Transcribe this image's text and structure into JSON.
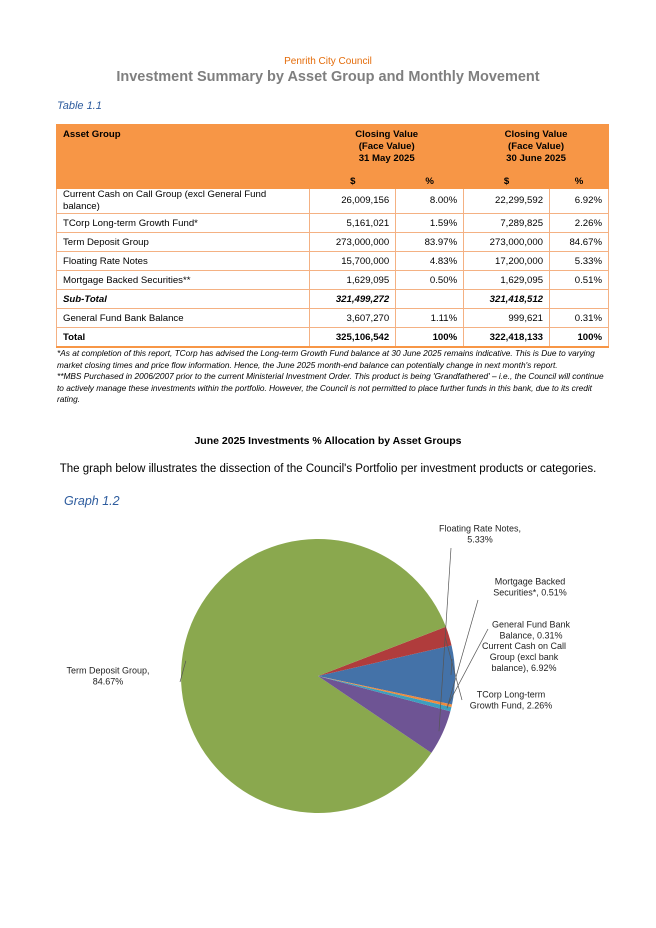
{
  "header": {
    "council": "Penrith City Council",
    "title": "Investment Summary by Asset Group and Monthly Movement"
  },
  "table": {
    "caption": "Table 1.1",
    "col_asset": "Asset Group",
    "col_may": [
      "Closing Value",
      "(Face Value)",
      "31 May 2025"
    ],
    "col_june": [
      "Closing Value",
      "(Face Value)",
      "30 June 2025"
    ],
    "sub_dollar": "$",
    "sub_pct": "%",
    "rows": [
      {
        "name": "Current Cash on Call Group (excl General Fund balance)",
        "may": "26,009,156",
        "may_pct": "8.00%",
        "june": "22,299,592",
        "june_pct": "6.92%"
      },
      {
        "name": "TCorp Long-term Growth Fund*",
        "may": "5,161,021",
        "may_pct": "1.59%",
        "june": "7,289,825",
        "june_pct": "2.26%"
      },
      {
        "name": "Term Deposit Group",
        "may": "273,000,000",
        "may_pct": "83.97%",
        "june": "273,000,000",
        "june_pct": "84.67%"
      },
      {
        "name": "Floating Rate Notes",
        "may": "15,700,000",
        "may_pct": "4.83%",
        "june": "17,200,000",
        "june_pct": "5.33%"
      },
      {
        "name": "Mortgage Backed Securities**",
        "may": "1,629,095",
        "may_pct": "0.50%",
        "june": "1,629,095",
        "june_pct": "0.51%"
      }
    ],
    "subtotal": {
      "name": "Sub-Total",
      "may": "321,499,272",
      "may_pct": "",
      "june": "321,418,512",
      "june_pct": ""
    },
    "gf": {
      "name": "General Fund Bank Balance",
      "may": "3,607,270",
      "may_pct": "1.11%",
      "june": "999,621",
      "june_pct": "0.31%"
    },
    "total": {
      "name": "Total",
      "may": "325,106,542",
      "may_pct": "100%",
      "june": "322,418,133",
      "june_pct": "100%"
    }
  },
  "notes": [
    "*As at completion of this report, TCorp has advised the Long-term Growth Fund balance at 30 June 2025 remains indicative. This is Due to varying market closing times and price flow information. Hence, the June 2025 month-end balance can potentially change in next month's report.",
    "**MBS Purchased in 2006/2007 prior to the current Ministerial Investment Order. This product is being 'Grandfathered' – i.e., the Council will continue to actively manage these investments within the portfolio. However, the Council is not permitted to place further funds in this bank, due to its credit rating."
  ],
  "section": {
    "heading": "June 2025 Investments % Allocation by Asset Groups",
    "intro": "The graph below illustrates the dissection of the Council's Portfolio per investment products or categories.",
    "graph_caption": "Graph 1.2"
  },
  "chart_data": {
    "type": "pie",
    "slices": [
      {
        "label_lines": [
          "Current Cash on Call",
          "Group (excl bank",
          "balance), 6.92%"
        ],
        "value": 6.92,
        "color": "#4472a8"
      },
      {
        "label_lines": [
          "TCorp Long-term",
          "Growth Fund, 2.26%"
        ],
        "value": 2.26,
        "color": "#b03c3c"
      },
      {
        "label_lines": [
          "Term Deposit Group,",
          "84.67%"
        ],
        "value": 84.67,
        "color": "#8aa84e"
      },
      {
        "label_lines": [
          "Floating Rate Notes,",
          "5.33%"
        ],
        "value": 5.33,
        "color": "#6e5494"
      },
      {
        "label_lines": [
          "Mortgage Backed",
          "Securities*, 0.51%"
        ],
        "value": 0.51,
        "color": "#3c9fbf"
      },
      {
        "label_lines": [
          "General Fund Bank",
          "Balance, 0.31%"
        ],
        "value": 0.31,
        "color": "#f08a3c"
      }
    ]
  }
}
